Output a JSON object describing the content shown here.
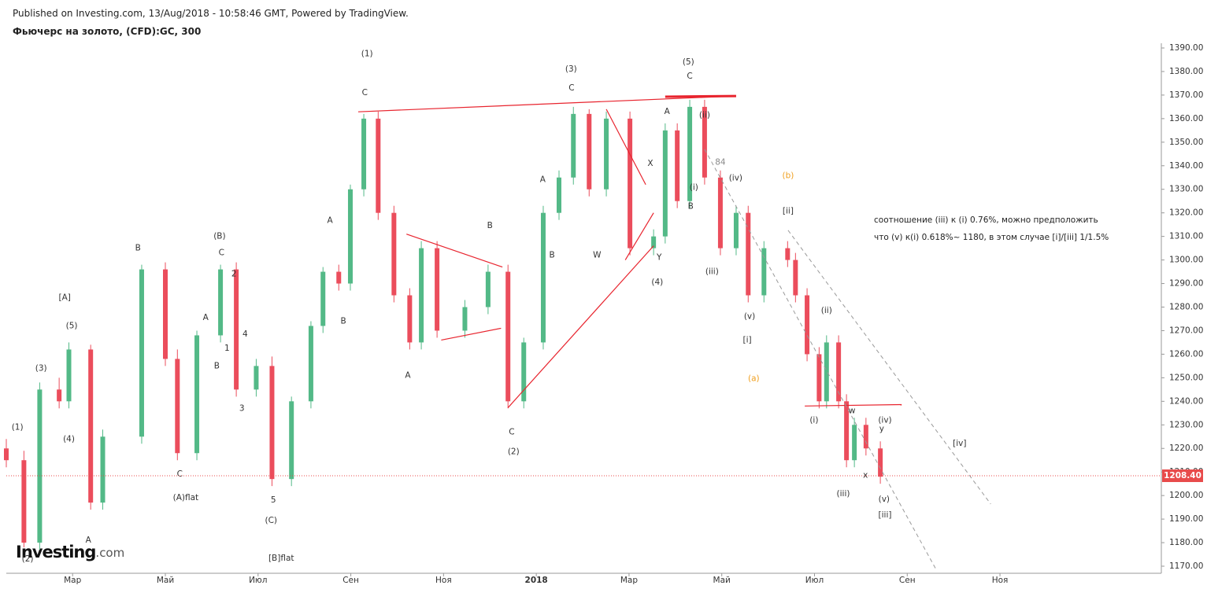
{
  "header": {
    "published": "Published on Investing.com, 13/Aug/2018 - 10:58:46 GMT, Powered by TradingView.",
    "instrument": "Фьючерс на золото, (CFD):GC, 300"
  },
  "logo": {
    "name": "Investing",
    "suffix": ".com"
  },
  "note_lines": [
    "соотношение (iii) к (i) 0.76%, можно предположить",
    "что (v) к(i) 0.618%~ 1180, в этом случае [i]/[iii] 1/1.5%"
  ],
  "chart_data": {
    "type": "candlestick",
    "up_color": "#53b987",
    "down_color": "#eb4d5c",
    "grid": false,
    "xlim": [
      0.57,
      25.48
    ],
    "ylim": [
      1167,
      1392
    ],
    "xticks": [
      {
        "value": 2,
        "label": "Мар"
      },
      {
        "value": 4,
        "label": "Май"
      },
      {
        "value": 6,
        "label": "Июл"
      },
      {
        "value": 8,
        "label": "Сен"
      },
      {
        "value": 10,
        "label": "Ноя"
      },
      {
        "value": 12,
        "label": "2018"
      },
      {
        "value": 14,
        "label": "Мар"
      },
      {
        "value": 16,
        "label": "Май"
      },
      {
        "value": 18,
        "label": "Июл"
      },
      {
        "value": 20,
        "label": "Сен"
      },
      {
        "value": 22,
        "label": "Ноя"
      }
    ],
    "yticks": [
      {
        "value": 1170,
        "label": "1170.00"
      },
      {
        "value": 1180,
        "label": "1180.00"
      },
      {
        "value": 1190,
        "label": "1190.00"
      },
      {
        "value": 1200,
        "label": "1200.00"
      },
      {
        "value": 1210,
        "label": "1210.00"
      },
      {
        "value": 1220,
        "label": "1220.00"
      },
      {
        "value": 1230,
        "label": "1230.00"
      },
      {
        "value": 1240,
        "label": "1240.00"
      },
      {
        "value": 1250,
        "label": "1250.00"
      },
      {
        "value": 1260,
        "label": "1260.00"
      },
      {
        "value": 1270,
        "label": "1270.00"
      },
      {
        "value": 1280,
        "label": "1280.00"
      },
      {
        "value": 1290,
        "label": "1290.00"
      },
      {
        "value": 1300,
        "label": "1300.00"
      },
      {
        "value": 1310,
        "label": "1310.00"
      },
      {
        "value": 1320,
        "label": "1320.00"
      },
      {
        "value": 1330,
        "label": "1330.00"
      },
      {
        "value": 1340,
        "label": "1340.00"
      },
      {
        "value": 1350,
        "label": "1350.00"
      },
      {
        "value": 1360,
        "label": "1360.00"
      },
      {
        "value": 1370,
        "label": "1370.00"
      },
      {
        "value": 1380,
        "label": "1380.00"
      },
      {
        "value": 1390,
        "label": "1390.00"
      }
    ],
    "x": [
      0.57,
      0.95,
      1.29,
      1.71,
      1.92,
      2.39,
      2.65,
      3.49,
      4.0,
      4.26,
      4.68,
      5.19,
      5.53,
      5.96,
      6.3,
      6.72,
      7.14,
      7.4,
      7.74,
      7.99,
      8.28,
      8.59,
      8.93,
      9.27,
      9.52,
      9.86,
      10.46,
      10.96,
      11.39,
      11.73,
      12.15,
      12.49,
      12.8,
      13.14,
      13.51,
      14.02,
      14.53,
      14.78,
      15.04,
      15.31,
      15.63,
      15.97,
      16.31,
      16.57,
      16.91,
      17.42,
      17.59,
      17.84,
      18.1,
      18.26,
      18.52,
      18.69,
      18.86,
      19.11,
      19.42
    ],
    "open": [
      1220,
      1215,
      1180,
      1245,
      1240,
      1262,
      1197,
      1225,
      1296,
      1258,
      1218,
      1268,
      1296,
      1245,
      1255,
      1207,
      1240,
      1272,
      1295,
      1290,
      1330,
      1360,
      1320,
      1285,
      1265,
      1305,
      1270,
      1280,
      1295,
      1240,
      1265,
      1320,
      1335,
      1362,
      1330,
      1360,
      1305,
      1310,
      1355,
      1325,
      1365,
      1335,
      1305,
      1320,
      1285,
      1305,
      1300,
      1285,
      1260,
      1240,
      1265,
      1240,
      1215,
      1230,
      1220
    ],
    "high": [
      1224,
      1219,
      1248,
      1250,
      1265,
      1264,
      1228,
      1298,
      1299,
      1262,
      1270,
      1298,
      1299,
      1258,
      1259,
      1242,
      1274,
      1297,
      1298,
      1332,
      1362,
      1363,
      1323,
      1288,
      1308,
      1308,
      1283,
      1298,
      1298,
      1267,
      1323,
      1338,
      1365,
      1364,
      1363,
      1363,
      1313,
      1358,
      1358,
      1368,
      1368,
      1338,
      1323,
      1323,
      1308,
      1308,
      1303,
      1288,
      1263,
      1268,
      1268,
      1243,
      1233,
      1233,
      1223
    ],
    "low": [
      1212,
      1178,
      1177,
      1237,
      1237,
      1194,
      1194,
      1222,
      1255,
      1215,
      1215,
      1265,
      1242,
      1242,
      1204,
      1204,
      1237,
      1269,
      1287,
      1287,
      1327,
      1317,
      1282,
      1262,
      1262,
      1267,
      1267,
      1277,
      1237,
      1237,
      1262,
      1317,
      1332,
      1327,
      1327,
      1302,
      1302,
      1307,
      1322,
      1322,
      1332,
      1302,
      1302,
      1282,
      1282,
      1297,
      1282,
      1257,
      1237,
      1237,
      1237,
      1212,
      1212,
      1217,
      1205
    ],
    "close": [
      1215,
      1180,
      1245,
      1240,
      1262,
      1197,
      1225,
      1296,
      1258,
      1218,
      1268,
      1296,
      1245,
      1255,
      1207,
      1240,
      1272,
      1295,
      1290,
      1330,
      1360,
      1320,
      1285,
      1265,
      1305,
      1270,
      1280,
      1295,
      1240,
      1265,
      1320,
      1335,
      1362,
      1330,
      1360,
      1305,
      1310,
      1355,
      1325,
      1365,
      1335,
      1305,
      1320,
      1285,
      1305,
      1300,
      1285,
      1260,
      1240,
      1265,
      1240,
      1215,
      1230,
      1220,
      1208
    ],
    "last_price": {
      "value": 1208.4,
      "label": "1208.40",
      "color": "#e84b4b"
    },
    "trend_lines": [
      {
        "color": "#e8242e",
        "width": 1.2,
        "points": [
          [
            8.16,
            1362.9
          ],
          [
            16.3,
            1369.6
          ]
        ]
      },
      {
        "color": "#e8242e",
        "width": 3,
        "points": [
          [
            14.78,
            1369.3
          ],
          [
            16.31,
            1369.6
          ]
        ]
      },
      {
        "color": "#e8242e",
        "width": 1.2,
        "points": [
          [
            9.2,
            1311
          ],
          [
            11.27,
            1297
          ]
        ]
      },
      {
        "color": "#e8242e",
        "width": 1.2,
        "points": [
          [
            9.95,
            1266
          ],
          [
            11.24,
            1271
          ]
        ]
      },
      {
        "color": "#e8242e",
        "width": 1.2,
        "points": [
          [
            11.39,
            1237.3
          ],
          [
            14.53,
            1306
          ]
        ]
      },
      {
        "color": "#e8242e",
        "width": 1.2,
        "points": [
          [
            13.51,
            1364
          ],
          [
            14.36,
            1332
          ]
        ]
      },
      {
        "color": "#e8242e",
        "width": 1.2,
        "points": [
          [
            13.92,
            1300
          ],
          [
            14.53,
            1320
          ]
        ]
      },
      {
        "color": "#e8242e",
        "width": 1.2,
        "points": [
          [
            17.79,
            1238
          ],
          [
            19.88,
            1238.6
          ]
        ]
      },
      {
        "color": "#999999",
        "width": 1,
        "dash": true,
        "points": [
          [
            17.43,
            1312.6
          ],
          [
            21.8,
            1196.4
          ]
        ]
      },
      {
        "color": "#999999",
        "width": 1,
        "dash": true,
        "points": [
          [
            15.63,
            1347
          ],
          [
            20.64,
            1168
          ]
        ]
      }
    ],
    "annotations": [
      {
        "text": "(1)",
        "x": 0.81,
        "y": 1229
      },
      {
        "text": "(2)",
        "x": 1.03,
        "y": 1173
      },
      {
        "text": "(3)",
        "x": 1.32,
        "y": 1254
      },
      {
        "text": "(4)",
        "x": 1.92,
        "y": 1224
      },
      {
        "text": "(5)",
        "x": 1.98,
        "y": 1272
      },
      {
        "text": "[A]",
        "x": 1.83,
        "y": 1284
      },
      {
        "text": "A",
        "x": 2.34,
        "y": 1181
      },
      {
        "text": "B",
        "x": 3.41,
        "y": 1305
      },
      {
        "text": "C",
        "x": 4.31,
        "y": 1209
      },
      {
        "text": "(A)flat",
        "x": 4.44,
        "y": 1199
      },
      {
        "text": "A",
        "x": 4.87,
        "y": 1275.5
      },
      {
        "text": "B",
        "x": 5.11,
        "y": 1255
      },
      {
        "text": "1",
        "x": 5.33,
        "y": 1262.5
      },
      {
        "text": "(B)",
        "x": 5.17,
        "y": 1310
      },
      {
        "text": "C",
        "x": 5.21,
        "y": 1303
      },
      {
        "text": "2",
        "x": 5.48,
        "y": 1294
      },
      {
        "text": "4",
        "x": 5.72,
        "y": 1268.5
      },
      {
        "text": "3",
        "x": 5.65,
        "y": 1237
      },
      {
        "text": "5",
        "x": 6.33,
        "y": 1198
      },
      {
        "text": "(C)",
        "x": 6.28,
        "y": 1189.4
      },
      {
        "text": "[B]flat",
        "x": 6.5,
        "y": 1173.3
      },
      {
        "text": "A",
        "x": 7.55,
        "y": 1316.7
      },
      {
        "text": "B",
        "x": 7.84,
        "y": 1274
      },
      {
        "text": "(1)",
        "x": 8.35,
        "y": 1387.5
      },
      {
        "text": "C",
        "x": 8.3,
        "y": 1371
      },
      {
        "text": "A",
        "x": 9.23,
        "y": 1251
      },
      {
        "text": "B",
        "x": 11.0,
        "y": 1314.6
      },
      {
        "text": "C",
        "x": 11.47,
        "y": 1227
      },
      {
        "text": "(2)",
        "x": 11.51,
        "y": 1218.5
      },
      {
        "text": "A",
        "x": 12.14,
        "y": 1334
      },
      {
        "text": "B",
        "x": 12.34,
        "y": 1302
      },
      {
        "text": "(3)",
        "x": 12.75,
        "y": 1381
      },
      {
        "text": "C",
        "x": 12.76,
        "y": 1373
      },
      {
        "text": "W",
        "x": 13.31,
        "y": 1302
      },
      {
        "text": "X",
        "x": 14.46,
        "y": 1341
      },
      {
        "text": "Y",
        "x": 14.65,
        "y": 1301
      },
      {
        "text": "(4)",
        "x": 14.61,
        "y": 1290.5
      },
      {
        "text": "A",
        "x": 14.82,
        "y": 1363
      },
      {
        "text": "(5)",
        "x": 15.28,
        "y": 1384
      },
      {
        "text": "C",
        "x": 15.31,
        "y": 1378
      },
      {
        "text": "(ii)",
        "x": 15.63,
        "y": 1361.5
      },
      {
        "text": "84",
        "x": 15.97,
        "y": 1341.4,
        "color": "#888888"
      },
      {
        "text": "(i)",
        "x": 15.4,
        "y": 1330.7
      },
      {
        "text": "B",
        "x": 15.33,
        "y": 1322.7
      },
      {
        "text": "(iv)",
        "x": 16.3,
        "y": 1334.7
      },
      {
        "text": "(iii)",
        "x": 15.79,
        "y": 1295
      },
      {
        "text": "(v)",
        "x": 16.6,
        "y": 1276
      },
      {
        "text": "[i]",
        "x": 16.55,
        "y": 1266
      },
      {
        "text": "(b)",
        "x": 17.43,
        "y": 1335.7,
        "color": "#f0a020"
      },
      {
        "text": "[ii]",
        "x": 17.43,
        "y": 1320.7
      },
      {
        "text": "(a)",
        "x": 16.69,
        "y": 1249.7,
        "color": "#f0a020"
      },
      {
        "text": "(ii)",
        "x": 18.26,
        "y": 1278.5
      },
      {
        "text": "(i)",
        "x": 17.99,
        "y": 1232
      },
      {
        "text": "w",
        "x": 18.81,
        "y": 1236
      },
      {
        "text": "(iv)",
        "x": 19.52,
        "y": 1232
      },
      {
        "text": "y",
        "x": 19.45,
        "y": 1228.2
      },
      {
        "text": "x",
        "x": 19.1,
        "y": 1208.5
      },
      {
        "text": "(iii)",
        "x": 18.62,
        "y": 1200.8
      },
      {
        "text": "(v)",
        "x": 19.5,
        "y": 1198.4
      },
      {
        "text": "[iii]",
        "x": 19.52,
        "y": 1191.7
      },
      {
        "text": "[iv]",
        "x": 21.13,
        "y": 1222
      }
    ]
  }
}
